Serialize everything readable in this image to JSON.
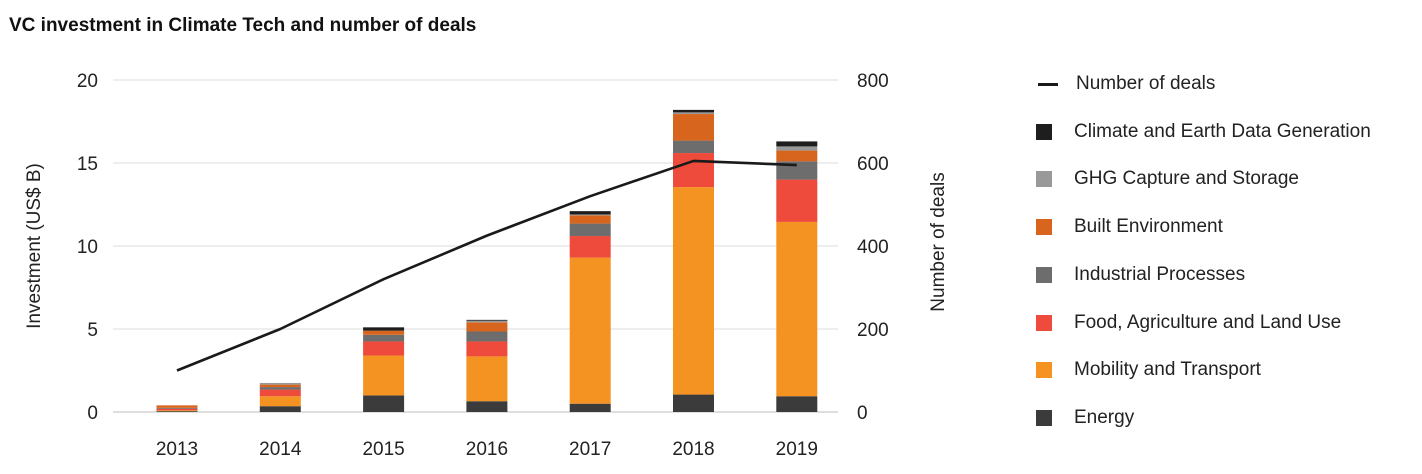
{
  "chart_data": {
    "type": "bar",
    "stacked": true,
    "title": "VC investment in Climate Tech and number of deals",
    "ylabel": "Investment (US$ B)",
    "y2label": "Number of deals",
    "ylim": [
      0,
      20
    ],
    "y2lim": [
      0,
      800
    ],
    "yticks": [
      0,
      5,
      10,
      15,
      20
    ],
    "y2ticks": [
      0,
      200,
      400,
      600,
      800
    ],
    "grid": true,
    "legend_position": "right",
    "categories": [
      "2013",
      "2014",
      "2015",
      "2016",
      "2017",
      "2018",
      "2019"
    ],
    "series": [
      {
        "name": "Energy",
        "color": "#3b3b3b",
        "values": [
          0.05,
          0.35,
          1.0,
          0.65,
          0.5,
          1.05,
          0.95
        ]
      },
      {
        "name": "Mobility and Transport",
        "color": "#f59322",
        "values": [
          0.05,
          0.6,
          2.4,
          2.7,
          8.8,
          12.5,
          10.5
        ]
      },
      {
        "name": "Food, Agriculture and Land Use",
        "color": "#ef4b3c",
        "values": [
          0.1,
          0.4,
          0.85,
          0.9,
          1.3,
          2.05,
          2.55
        ]
      },
      {
        "name": "Industrial Processes",
        "color": "#6d6d6d",
        "values": [
          0.05,
          0.15,
          0.4,
          0.6,
          0.75,
          0.75,
          1.1
        ]
      },
      {
        "name": "Built Environment",
        "color": "#d8651e",
        "values": [
          0.15,
          0.15,
          0.25,
          0.55,
          0.5,
          1.6,
          0.65
        ]
      },
      {
        "name": "GHG Capture and Storage",
        "color": "#999999",
        "values": [
          0.0,
          0.1,
          0.0,
          0.1,
          0.05,
          0.1,
          0.25
        ]
      },
      {
        "name": "Climate and Earth Data Generation",
        "color": "#1e1e1e",
        "values": [
          0.0,
          0.0,
          0.2,
          0.05,
          0.2,
          0.15,
          0.3
        ]
      }
    ],
    "line_series": {
      "name": "Number of deals",
      "color": "#1a1a1a",
      "axis": "right",
      "values": [
        100,
        200,
        320,
        425,
        520,
        605,
        595
      ]
    }
  }
}
